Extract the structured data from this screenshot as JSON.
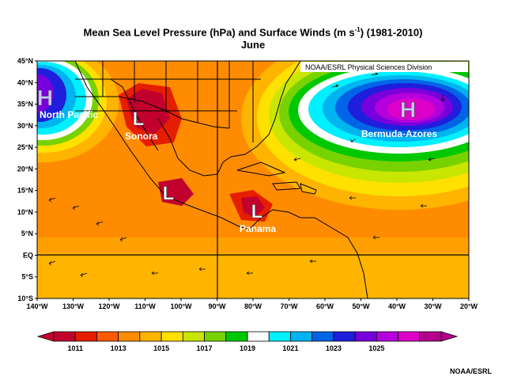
{
  "title": {
    "line1_pre": "Mean Sea Level Pressure (hPa) and Surface Winds (m s",
    "line1_sup": "-1",
    "line1_post": ") (1981-2010)",
    "line2": "June"
  },
  "division_label": "NOAA/ESRL Physical Sciences Division",
  "credit": "NOAA/ESRL",
  "lat_labels": [
    "45°N",
    "40°N",
    "35°N",
    "30°N",
    "25°N",
    "20°N",
    "15°N",
    "10°N",
    "5°N",
    "EQ",
    "5°S",
    "10°S"
  ],
  "lon_labels": [
    "140°W",
    "130°W",
    "120°W",
    "110°W",
    "100°W",
    "90°W",
    "80°W",
    "70°W",
    "60°W",
    "50°W",
    "40°W",
    "30°W",
    "20°W"
  ],
  "pressure_systems": [
    {
      "letter": "H",
      "name": "North Pacific",
      "type": "high"
    },
    {
      "letter": "L",
      "name": "Sonora",
      "type": "low"
    },
    {
      "letter": "L",
      "name": "",
      "type": "low"
    },
    {
      "letter": "L",
      "name": "Panama",
      "type": "low"
    },
    {
      "letter": "H",
      "name": "Bermuda-Azores",
      "type": "high"
    }
  ],
  "colorbar": {
    "colors": [
      "#c2002d",
      "#e61e00",
      "#ff5a00",
      "#ff8c00",
      "#ffb400",
      "#ffe100",
      "#c8e600",
      "#78d200",
      "#00c800",
      "#ffffff",
      "#00f0ff",
      "#00b4f0",
      "#0064e6",
      "#1e1edc",
      "#7800dc",
      "#b400dc",
      "#dc00c8",
      "#b4008c"
    ],
    "tick_labels": [
      "1011",
      "1013",
      "1015",
      "1017",
      "1019",
      "1021",
      "1023",
      "1025"
    ]
  }
}
